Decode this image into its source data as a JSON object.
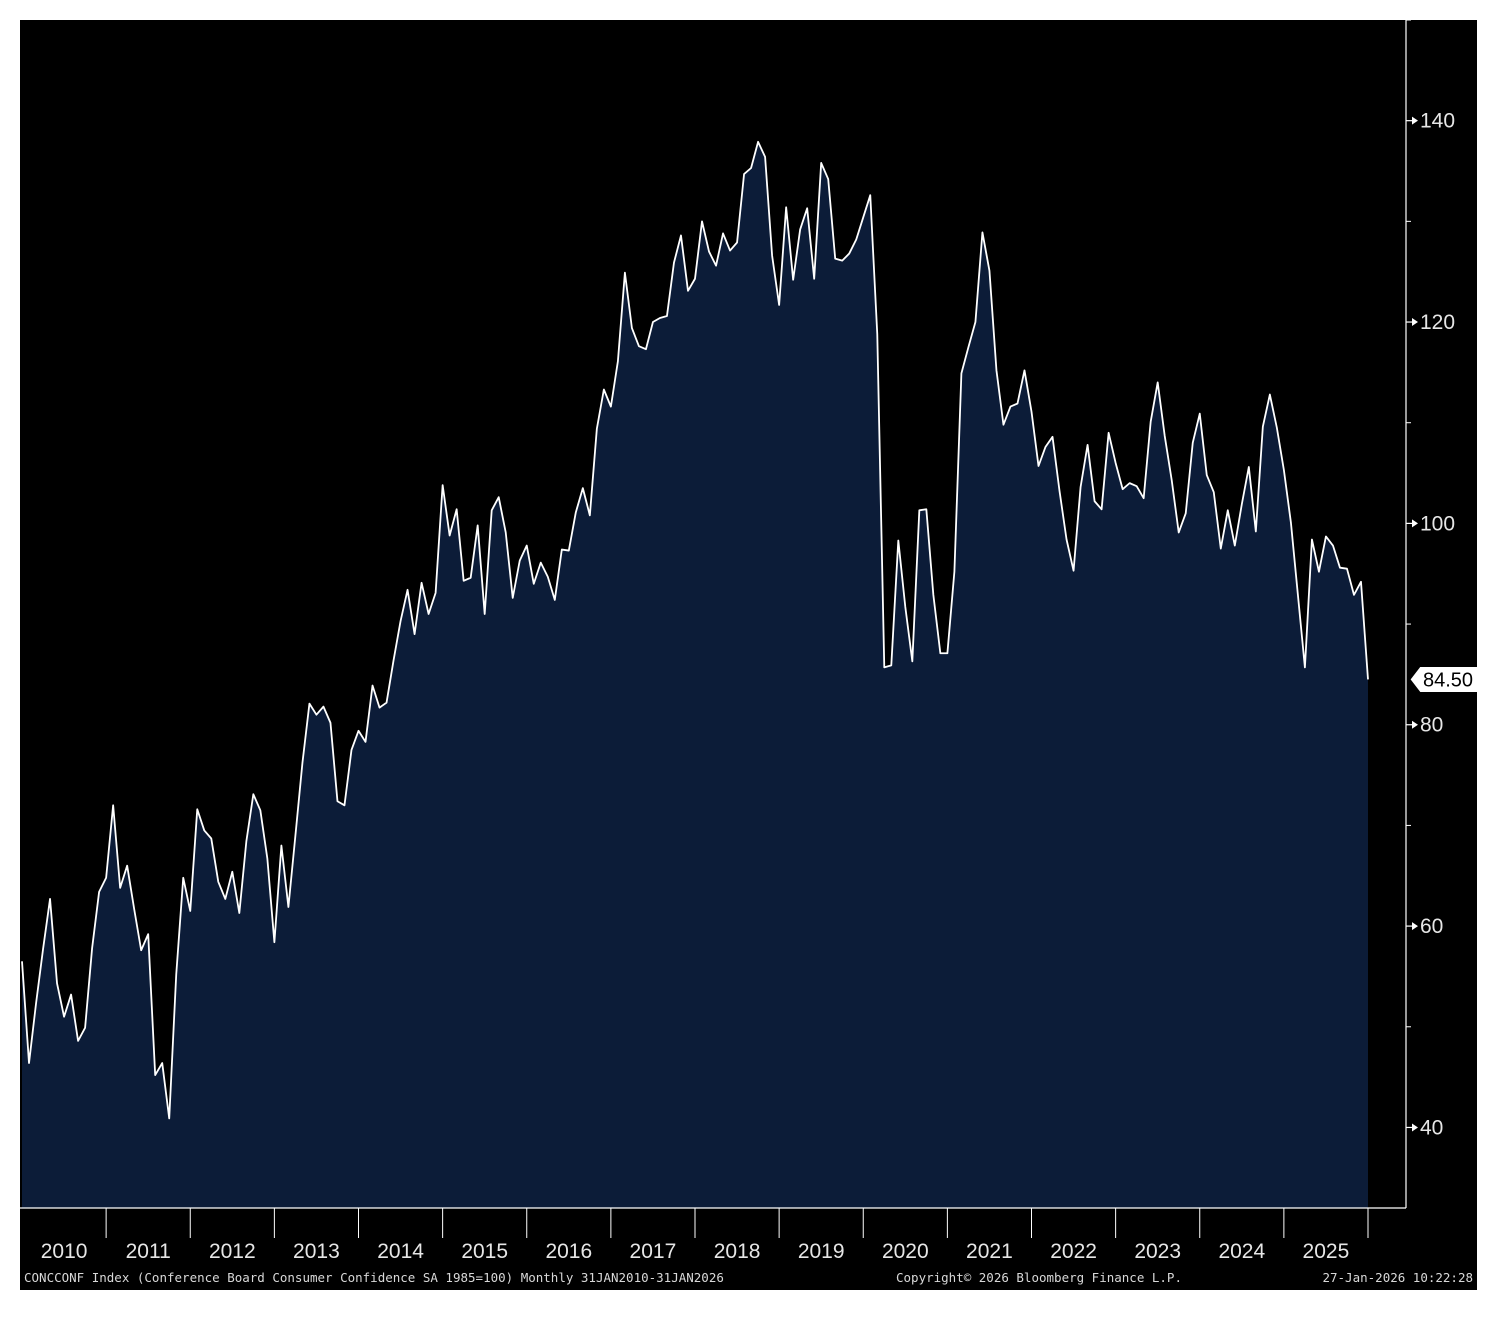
{
  "chart_data": {
    "type": "area",
    "title": "",
    "xlabel": "",
    "ylabel": "",
    "ylim": [
      32,
      150
    ],
    "y_ticks": [
      40,
      60,
      80,
      100,
      120,
      140
    ],
    "y_tick_labels": [
      "40",
      "60",
      "80",
      "100",
      "120",
      "140"
    ],
    "x_range": [
      "2010-01",
      "2026-01"
    ],
    "year_labels": [
      "2010",
      "2011",
      "2012",
      "2013",
      "2014",
      "2015",
      "2016",
      "2017",
      "2018",
      "2019",
      "2020",
      "2021",
      "2022",
      "2023",
      "2024",
      "2025"
    ],
    "grid": false,
    "line_color": "#ffffff",
    "fill_color": "#0c1c38",
    "background": "#000000",
    "last_value_label": "84.50",
    "footer_left": "CONCCONF Index (Conference Board Consumer Confidence SA 1985=100) Monthly 31JAN2010-31JAN2026",
    "footer_center": "Copyright© 2026 Bloomberg Finance L.P.",
    "footer_right": "27-Jan-2026 10:22:28",
    "series": [
      {
        "x": [
          "2010-01",
          "2010-02",
          "2010-03",
          "2010-04",
          "2010-05",
          "2010-06",
          "2010-07",
          "2010-08",
          "2010-09",
          "2010-10",
          "2010-11",
          "2010-12",
          "2011-01",
          "2011-02",
          "2011-03",
          "2011-04",
          "2011-05",
          "2011-06",
          "2011-07",
          "2011-08",
          "2011-09",
          "2011-10",
          "2011-11",
          "2011-12",
          "2012-01",
          "2012-02",
          "2012-03",
          "2012-04",
          "2012-05",
          "2012-06",
          "2012-07",
          "2012-08",
          "2012-09",
          "2012-10",
          "2012-11",
          "2012-12",
          "2013-01",
          "2013-02",
          "2013-03",
          "2013-04",
          "2013-05",
          "2013-06",
          "2013-07",
          "2013-08",
          "2013-09",
          "2013-10",
          "2013-11",
          "2013-12",
          "2014-01",
          "2014-02",
          "2014-03",
          "2014-04",
          "2014-05",
          "2014-06",
          "2014-07",
          "2014-08",
          "2014-09",
          "2014-10",
          "2014-11",
          "2014-12",
          "2015-01",
          "2015-02",
          "2015-03",
          "2015-04",
          "2015-05",
          "2015-06",
          "2015-07",
          "2015-08",
          "2015-09",
          "2015-10",
          "2015-11",
          "2015-12",
          "2016-01",
          "2016-02",
          "2016-03",
          "2016-04",
          "2016-05",
          "2016-06",
          "2016-07",
          "2016-08",
          "2016-09",
          "2016-10",
          "2016-11",
          "2016-12",
          "2017-01",
          "2017-02",
          "2017-03",
          "2017-04",
          "2017-05",
          "2017-06",
          "2017-07",
          "2017-08",
          "2017-09",
          "2017-10",
          "2017-11",
          "2017-12",
          "2018-01",
          "2018-02",
          "2018-03",
          "2018-04",
          "2018-05",
          "2018-06",
          "2018-07",
          "2018-08",
          "2018-09",
          "2018-10",
          "2018-11",
          "2018-12",
          "2019-01",
          "2019-02",
          "2019-03",
          "2019-04",
          "2019-05",
          "2019-06",
          "2019-07",
          "2019-08",
          "2019-09",
          "2019-10",
          "2019-11",
          "2019-12",
          "2020-01",
          "2020-02",
          "2020-03",
          "2020-04",
          "2020-05",
          "2020-06",
          "2020-07",
          "2020-08",
          "2020-09",
          "2020-10",
          "2020-11",
          "2020-12",
          "2021-01",
          "2021-02",
          "2021-03",
          "2021-04",
          "2021-05",
          "2021-06",
          "2021-07",
          "2021-08",
          "2021-09",
          "2021-10",
          "2021-11",
          "2021-12",
          "2022-01",
          "2022-02",
          "2022-03",
          "2022-04",
          "2022-05",
          "2022-06",
          "2022-07",
          "2022-08",
          "2022-09",
          "2022-10",
          "2022-11",
          "2022-12",
          "2023-01",
          "2023-02",
          "2023-03",
          "2023-04",
          "2023-05",
          "2023-06",
          "2023-07",
          "2023-08",
          "2023-09",
          "2023-10",
          "2023-11",
          "2023-12",
          "2024-01",
          "2024-02",
          "2024-03",
          "2024-04",
          "2024-05",
          "2024-06",
          "2024-07",
          "2024-08",
          "2024-09",
          "2024-10",
          "2024-11",
          "2024-12",
          "2025-01",
          "2025-02",
          "2025-03",
          "2025-04",
          "2025-05",
          "2025-06",
          "2025-07",
          "2025-08",
          "2025-09",
          "2025-10",
          "2025-11",
          "2025-12",
          "2026-01"
        ],
        "values": [
          56.5,
          46.4,
          52.3,
          57.7,
          62.7,
          54.3,
          51.0,
          53.2,
          48.6,
          49.9,
          57.8,
          63.4,
          64.8,
          72.0,
          63.8,
          66.0,
          61.7,
          57.6,
          59.2,
          45.2,
          46.4,
          40.9,
          55.2,
          64.8,
          61.5,
          71.6,
          69.5,
          68.7,
          64.4,
          62.7,
          65.4,
          61.3,
          68.4,
          73.1,
          71.5,
          66.7,
          58.4,
          68.0,
          61.9,
          69.0,
          76.2,
          82.1,
          81.0,
          81.8,
          80.2,
          72.4,
          72.0,
          77.5,
          79.4,
          78.3,
          83.9,
          81.7,
          82.2,
          86.4,
          90.3,
          93.4,
          89.0,
          94.1,
          91.0,
          93.1,
          103.8,
          98.8,
          101.4,
          94.3,
          94.6,
          99.8,
          91.0,
          101.3,
          102.6,
          99.1,
          92.6,
          96.3,
          97.8,
          94.0,
          96.1,
          94.7,
          92.4,
          97.4,
          97.3,
          101.1,
          103.5,
          100.8,
          109.4,
          113.3,
          111.6,
          116.1,
          124.9,
          119.4,
          117.6,
          117.3,
          120.0,
          120.4,
          120.6,
          125.9,
          128.6,
          123.1,
          124.3,
          130.0,
          127.0,
          125.6,
          128.8,
          127.1,
          127.9,
          134.7,
          135.3,
          137.9,
          136.4,
          126.6,
          121.7,
          131.4,
          124.2,
          129.2,
          131.3,
          124.3,
          135.8,
          134.2,
          126.3,
          126.1,
          126.8,
          128.2,
          130.4,
          132.6,
          118.8,
          85.7,
          85.9,
          98.3,
          91.7,
          86.3,
          101.3,
          101.4,
          92.9,
          87.1,
          87.1,
          95.2,
          114.9,
          117.5,
          120.0,
          128.9,
          125.1,
          115.2,
          109.8,
          111.6,
          111.9,
          115.2,
          111.1,
          105.7,
          107.6,
          108.6,
          103.2,
          98.4,
          95.3,
          103.6,
          107.8,
          102.2,
          101.4,
          109.0,
          106.0,
          103.4,
          104.0,
          103.7,
          102.5,
          110.1,
          114.0,
          108.7,
          104.3,
          99.1,
          101.0,
          108.0,
          110.9,
          104.8,
          103.1,
          97.5,
          101.3,
          97.8,
          101.9,
          105.6,
          99.2,
          109.6,
          112.8,
          109.5,
          105.3,
          100.1,
          92.9,
          85.7,
          98.4,
          95.2,
          98.7,
          97.8,
          95.6,
          95.5,
          92.9,
          94.2,
          84.5
        ]
      }
    ]
  }
}
